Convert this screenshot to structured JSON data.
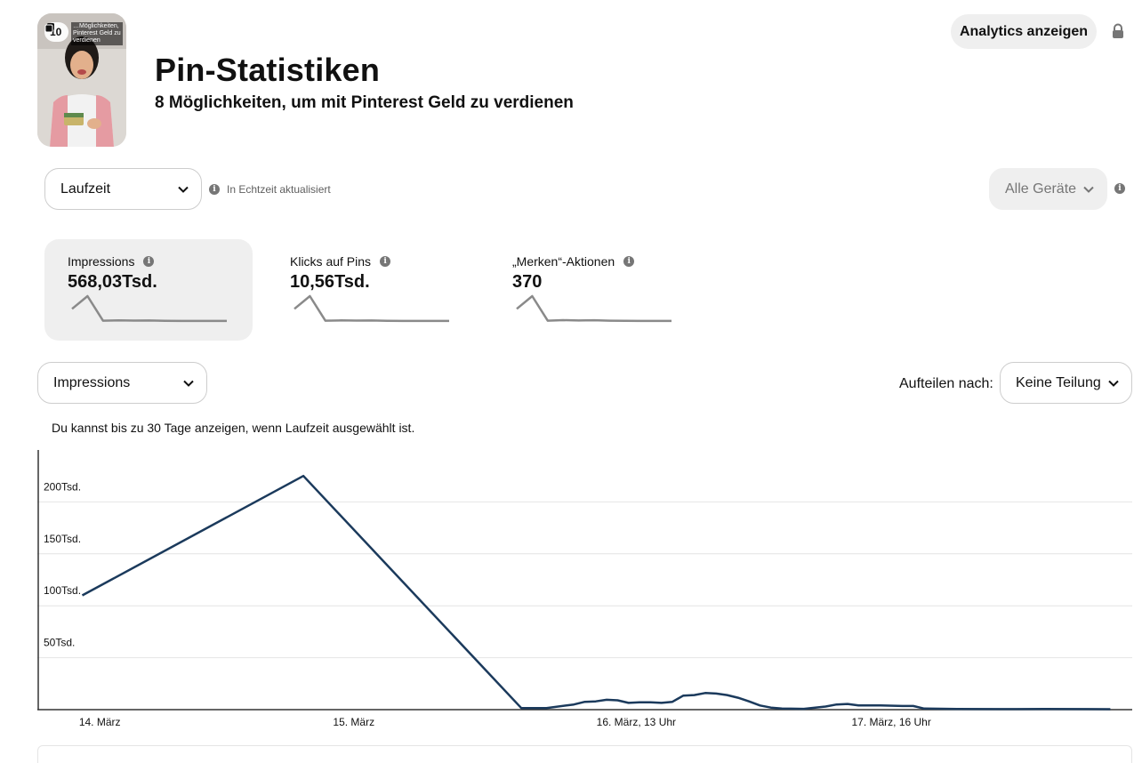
{
  "pin": {
    "board_count": "10",
    "thumb_caption": "…Möglichkeiten, Pinterest Geld zu verdienen",
    "title": "Pin-Statistiken",
    "subtitle": "8 Möglichkeiten, um mit Pinterest Geld zu verdienen"
  },
  "header": {
    "analytics_button": "Analytics anzeigen",
    "lock_icon": "lock-icon"
  },
  "filters": {
    "date_range": "Laufzeit",
    "realtime_note": "In Echtzeit aktualisiert",
    "device": "Alle Geräte"
  },
  "metrics": [
    {
      "label": "Impressions",
      "value": "568,03Tsd.",
      "active": true,
      "trend": [
        110,
        225,
        3,
        6,
        4,
        5,
        2,
        1,
        1,
        1,
        1
      ]
    },
    {
      "label": "Klicks auf Pins",
      "value": "10,56Tsd.",
      "active": false,
      "trend": [
        110,
        225,
        3,
        6,
        4,
        5,
        2,
        1,
        1,
        1,
        1
      ]
    },
    {
      "label": "„Merken“-Aktionen",
      "value": "370",
      "active": false,
      "trend": [
        110,
        225,
        3,
        8,
        5,
        7,
        3,
        2,
        1,
        1,
        1
      ]
    }
  ],
  "chart_controls": {
    "metric_select": "Impressions",
    "split_label": "Aufteilen nach:",
    "split_select": "Keine Teilung",
    "note": "Du kannst bis zu 30 Tage anzeigen, wenn Laufzeit ausgewählt ist."
  },
  "colors": {
    "line": "#1b3a5c",
    "spark": "#8a8a8a",
    "grid": "#e4e4e4"
  },
  "chart_data": {
    "type": "line",
    "title": "",
    "xlabel": "",
    "ylabel": "",
    "ylim": [
      0,
      250000
    ],
    "y_ticks": [
      {
        "value": 50000,
        "label": "50Tsd."
      },
      {
        "value": 100000,
        "label": "100Tsd."
      },
      {
        "value": 150000,
        "label": "150Tsd."
      },
      {
        "value": 200000,
        "label": "200Tsd."
      }
    ],
    "x_ticks": [
      {
        "pos": 0.057,
        "label": "14. März"
      },
      {
        "pos": 0.289,
        "label": "15. März"
      },
      {
        "pos": 0.547,
        "label": "16. März, 13 Uhr"
      },
      {
        "pos": 0.78,
        "label": "17. März, 16 Uhr"
      }
    ],
    "series": [
      {
        "points": [
          [
            0.041,
            110000
          ],
          [
            0.243,
            225000
          ],
          [
            0.442,
            1500
          ],
          [
            0.465,
            1500
          ],
          [
            0.49,
            5000
          ],
          [
            0.5,
            7500
          ],
          [
            0.51,
            8000
          ],
          [
            0.52,
            9500
          ],
          [
            0.53,
            9000
          ],
          [
            0.54,
            6500
          ],
          [
            0.55,
            7000
          ],
          [
            0.56,
            7000
          ],
          [
            0.57,
            6500
          ],
          [
            0.58,
            7500
          ],
          [
            0.59,
            13500
          ],
          [
            0.6,
            14000
          ],
          [
            0.61,
            16000
          ],
          [
            0.62,
            15500
          ],
          [
            0.63,
            14000
          ],
          [
            0.64,
            11500
          ],
          [
            0.65,
            8000
          ],
          [
            0.66,
            4000
          ],
          [
            0.67,
            2000
          ],
          [
            0.68,
            1000
          ],
          [
            0.7,
            800
          ],
          [
            0.72,
            3000
          ],
          [
            0.73,
            5000
          ],
          [
            0.74,
            5500
          ],
          [
            0.75,
            4000
          ],
          [
            0.77,
            4000
          ],
          [
            0.79,
            3500
          ],
          [
            0.8,
            3500
          ],
          [
            0.81,
            1000
          ],
          [
            0.84,
            700
          ],
          [
            0.88,
            500
          ],
          [
            0.92,
            700
          ],
          [
            0.96,
            500
          ],
          [
            0.98,
            400
          ]
        ]
      }
    ]
  }
}
